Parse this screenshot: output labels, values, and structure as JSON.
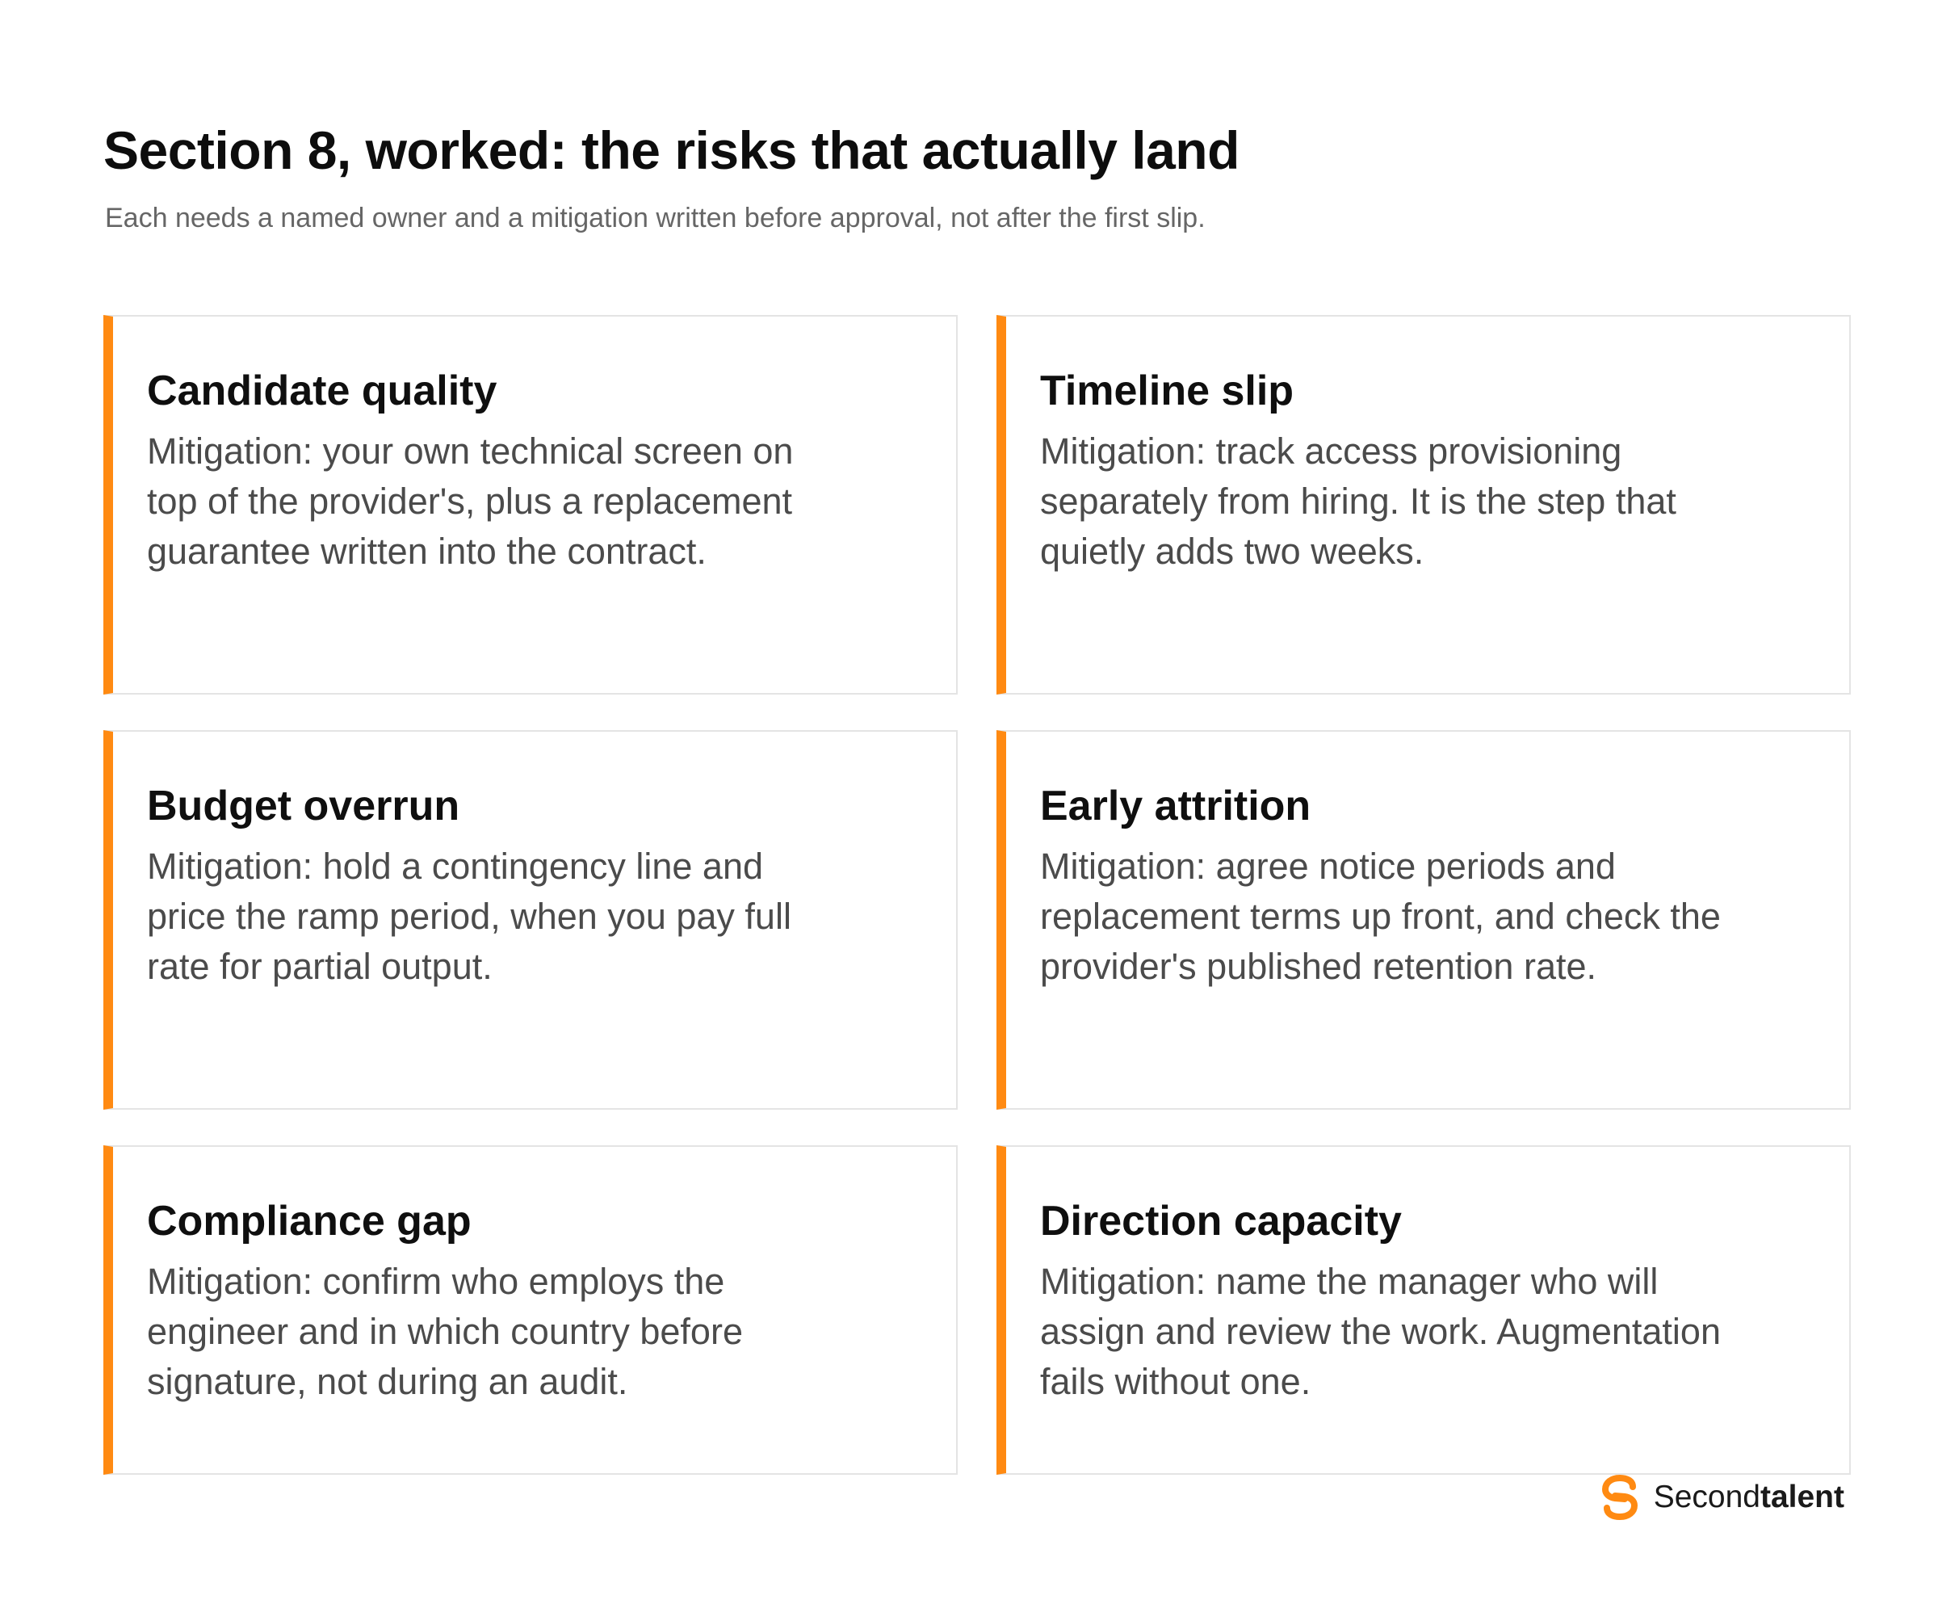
{
  "header": {
    "title": "Section 8, worked: the risks that actually land",
    "subtitle": "Each needs a named owner and a mitigation written before approval, not after the first slip."
  },
  "colors": {
    "accent": "#ff8a12",
    "card_border": "#e4e4e4",
    "title_text": "#0d0d0d",
    "body_text": "#4b4b4b",
    "subtitle_text": "#666666"
  },
  "cards": [
    {
      "title": "Candidate quality",
      "body": "Mitigation: your own technical screen on top of the provider's, plus a replacement guarantee written into the contract."
    },
    {
      "title": "Timeline slip",
      "body": "Mitigation: track access provisioning separately from hiring. It is the step that quietly adds two weeks."
    },
    {
      "title": "Budget overrun",
      "body": "Mitigation: hold a contingency line and price the ramp period, when you pay full rate for partial output."
    },
    {
      "title": "Early attrition",
      "body": "Mitigation: agree notice periods and replacement terms up front, and check the provider's published retention rate."
    },
    {
      "title": "Compliance gap",
      "body": "Mitigation: confirm who employs the engineer and in which country before signature, not during an audit."
    },
    {
      "title": "Direction capacity",
      "body": "Mitigation: name the manager who will assign and review the work. Augmentation fails without one."
    }
  ],
  "brand": {
    "logo_icon": "secondtalent-s-logo-icon",
    "name_regular": "Second",
    "name_bold": "talent"
  }
}
